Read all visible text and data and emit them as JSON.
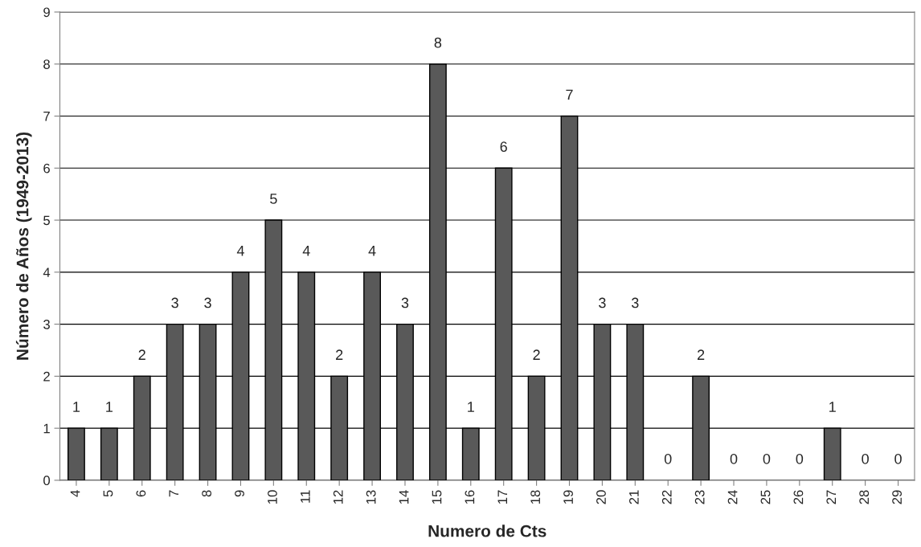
{
  "chart_data": {
    "type": "bar",
    "xlabel": "Numero de Cts",
    "ylabel": "Número de Años (1949-2013)",
    "categories": [
      "4",
      "5",
      "6",
      "7",
      "8",
      "9",
      "10",
      "11",
      "12",
      "13",
      "14",
      "15",
      "16",
      "17",
      "18",
      "19",
      "20",
      "21",
      "22",
      "23",
      "24",
      "25",
      "26",
      "27",
      "28",
      "29"
    ],
    "values": [
      1,
      1,
      2,
      3,
      3,
      4,
      5,
      4,
      2,
      4,
      3,
      8,
      1,
      6,
      2,
      7,
      3,
      3,
      0,
      2,
      0,
      0,
      0,
      1,
      0,
      0
    ],
    "color": "#595959",
    "ylim": [
      0,
      9
    ],
    "yticks": [
      0,
      1,
      2,
      3,
      4,
      5,
      6,
      7,
      8,
      9
    ],
    "grid": "y",
    "data_labels": true
  }
}
